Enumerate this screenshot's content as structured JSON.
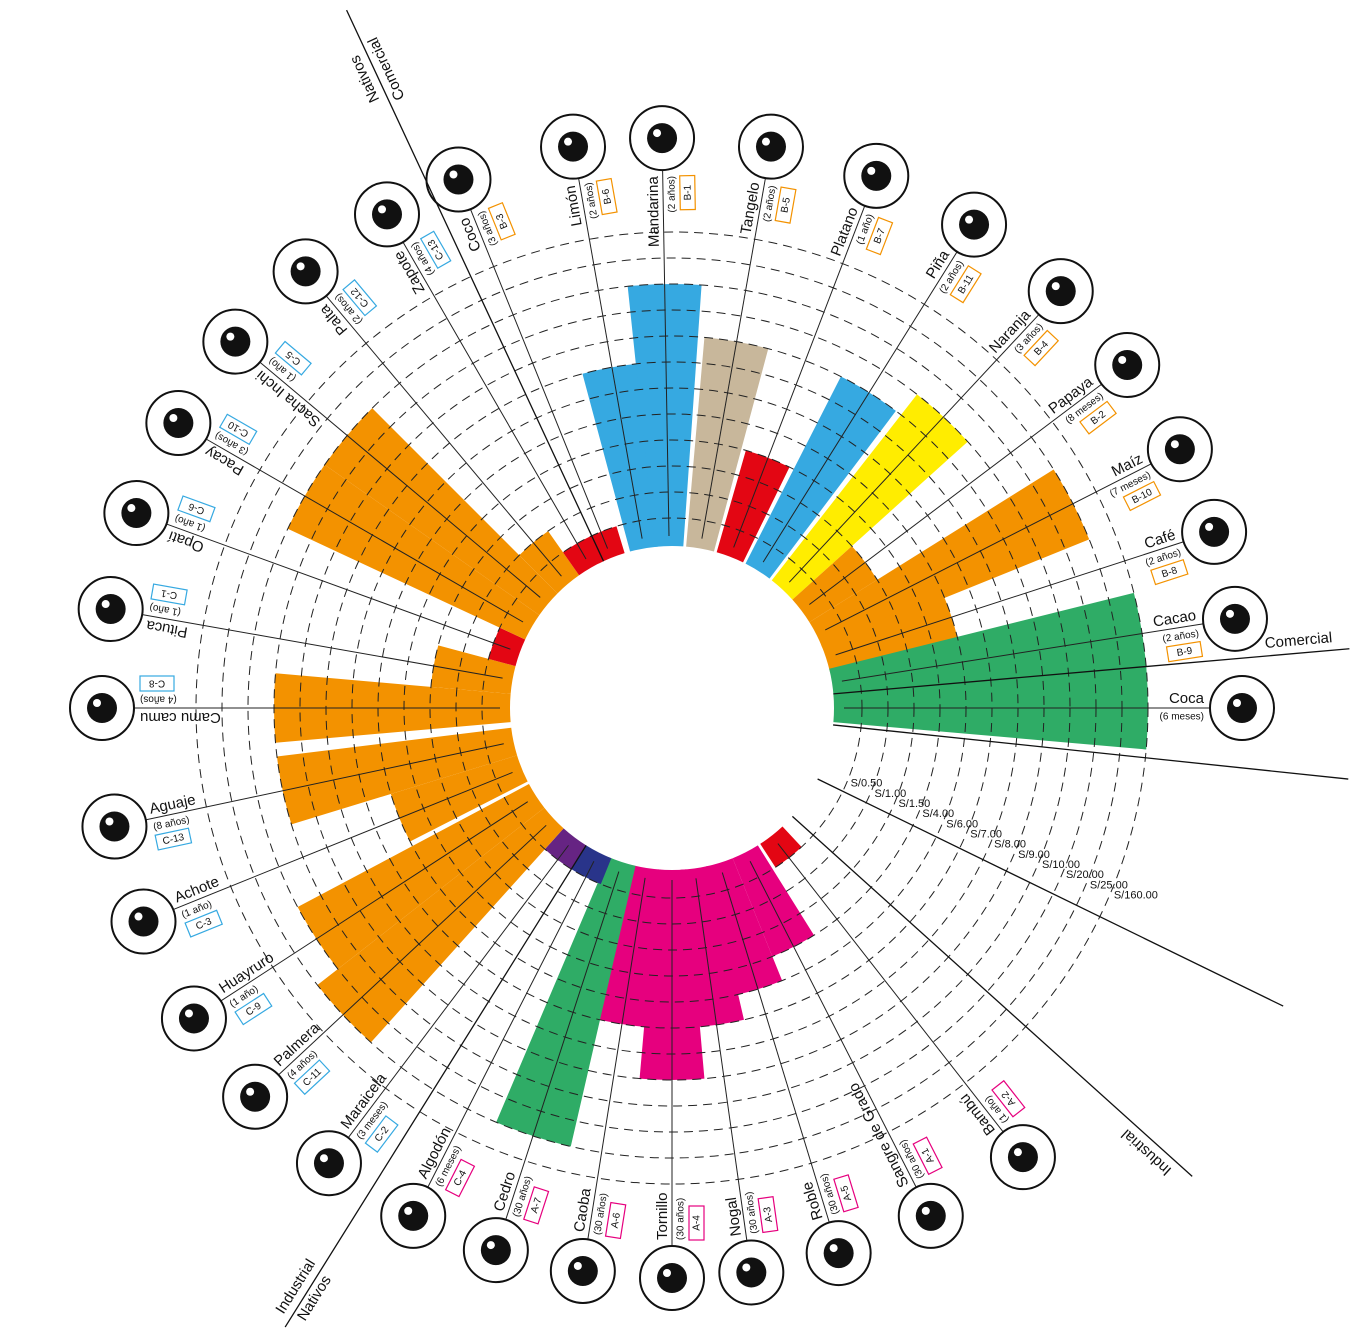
{
  "chart_data": {
    "type": "polar-bar",
    "categories": [
      "Coco",
      "Limón",
      "Mandarina",
      "Tangelo",
      "Platano",
      "Piña",
      "Naranja",
      "Papaya",
      "Maíz",
      "Café",
      "Cacao",
      "Coca",
      "Bambú",
      "Sangre de Grado",
      "Roble",
      "Nogal",
      "Tornillo",
      "Caoba",
      "Cedro",
      "Algodón",
      "Maraicela",
      "Palmera",
      "Huayruro",
      "Achote",
      "Aguaje",
      "Camu camu",
      "Pituca",
      "Opatí",
      "Pacay",
      "Sacha Inchi",
      "Palta",
      "Zapote"
    ],
    "durations": [
      "(3 años)",
      "(2 años)",
      "(2 años)",
      "(2 años)",
      "(1 año)",
      "(2 años)",
      "(3 años)",
      "(8 meses)",
      "(7 meses)",
      "(2 años)",
      "(2 años)",
      "(6 meses)",
      "(1 año)",
      "(30 años)",
      "(30 años)",
      "(30 años)",
      "(30 años)",
      "(30 años)",
      "(30 años)",
      "(6 meses)",
      "(3 meses)",
      "(4 años)",
      "(1 año)",
      "(1 año)",
      "(8 años)",
      "(4 años)",
      "(1 año)",
      "(1 año)",
      "(3 años)",
      "(1 año)",
      "(2 años)",
      "(4 años)"
    ],
    "codes": [
      "B-3",
      "B-6",
      "B-1",
      "B-5",
      "B-7",
      "B-11",
      "B-4",
      "B-2",
      "B-10",
      "B-8",
      "B-9",
      null,
      "A-2",
      "A-1",
      "A-5",
      "A-3",
      "A-4",
      "A-6",
      "A-7",
      "C-4",
      "C-2",
      "C-11",
      "C-9",
      "C-3",
      "C-13",
      "C-8",
      "C-1",
      "C-6",
      "C-10",
      "C-5",
      "C-12",
      "C-13"
    ],
    "code_colors": [
      "#f39200",
      "#f39200",
      "#f39200",
      "#f39200",
      "#f39200",
      "#f39200",
      "#f39200",
      "#f39200",
      "#f39200",
      "#f39200",
      "#f39200",
      null,
      "#e6007e",
      "#e6007e",
      "#e6007e",
      "#e6007e",
      "#e6007e",
      "#e6007e",
      "#e6007e",
      "#e6007e",
      "#36a9e1",
      "#36a9e1",
      "#36a9e1",
      "#36a9e1",
      "#36a9e1",
      "#36a9e1",
      "#36a9e1",
      "#36a9e1",
      "#36a9e1",
      "#36a9e1",
      "#36a9e1",
      "#36a9e1"
    ],
    "values": [
      0.5,
      8,
      20,
      9,
      4,
      9,
      10,
      1.5,
      25,
      6,
      160,
      160,
      0.5,
      4,
      6,
      7,
      9,
      7,
      25,
      0.5,
      0.5,
      25,
      20,
      6,
      10,
      10,
      1.5,
      0.5,
      20,
      20,
      1,
      0.5
    ],
    "colors": [
      "#e30613",
      "#36a9e1",
      "#36a9e1",
      "#c8b79b",
      "#e30613",
      "#36a9e1",
      "#ffed00",
      "#f39200",
      "#f39200",
      "#f39200",
      "#2fac66",
      "#2fac66",
      "#e30613",
      "#e6007e",
      "#e6007e",
      "#e6007e",
      "#e6007e",
      "#e6007e",
      "#2fac66",
      "#29348a",
      "#662483",
      "#f39200",
      "#f39200",
      "#f39200",
      "#f39200",
      "#f39200",
      "#f39200",
      "#e30613",
      "#f39200",
      "#f39200",
      "#f39200",
      "#e30613"
    ],
    "rlim": [
      0,
      160
    ],
    "rticks": [
      {
        "value": 0.5,
        "label": "S/0.50"
      },
      {
        "value": 1,
        "label": "S/1.00"
      },
      {
        "value": 1.5,
        "label": "S/1.50"
      },
      {
        "value": 4,
        "label": "S/4.00"
      },
      {
        "value": 6,
        "label": "S/6.00"
      },
      {
        "value": 7,
        "label": "S/7.00"
      },
      {
        "value": 8,
        "label": "S/8.00"
      },
      {
        "value": 9,
        "label": "S/9.00"
      },
      {
        "value": 10,
        "label": "S/10.00"
      },
      {
        "value": 20,
        "label": "S/20.00"
      },
      {
        "value": 25,
        "label": "S/25.00"
      },
      {
        "value": 160,
        "label": "S/160.00"
      }
    ],
    "section_labels": [
      "Comercial",
      "Nativos",
      "Comercial",
      "Industrial",
      "Nativos",
      "Industrial"
    ]
  }
}
